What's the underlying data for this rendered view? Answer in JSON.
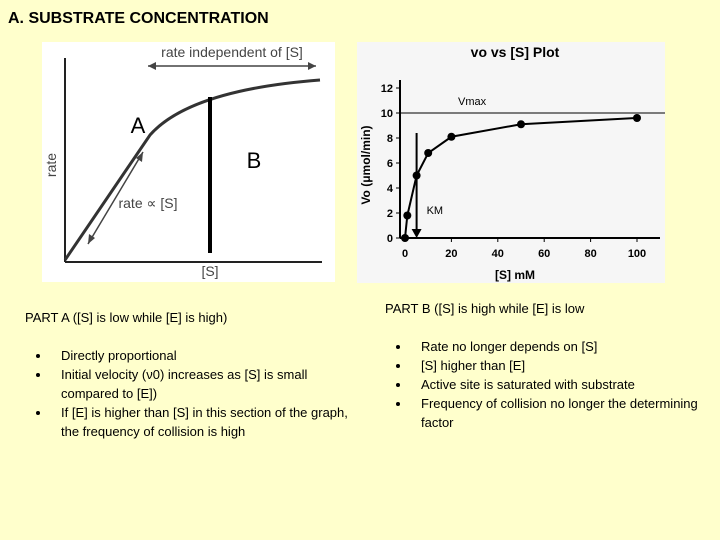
{
  "heading": "A.   SUBSTRATE CONCENTRATION",
  "diagram": {
    "top_label": "rate independent of [S]",
    "region_a": "A",
    "region_b": "B",
    "y_label": "rate",
    "slope_label": "rate ∝ [S]",
    "x_label": "[S]"
  },
  "chart_data": {
    "type": "line",
    "title": "vo vs [S] Plot",
    "x_label": "[S]  mM",
    "y_label": "Vo (μmol/min)",
    "x": [
      0,
      1,
      5,
      10,
      20,
      50,
      100
    ],
    "values": [
      0,
      1.8,
      5,
      6.8,
      8.1,
      9.1,
      9.6
    ],
    "color": "#000000",
    "xlim": [
      0,
      100
    ],
    "ylim": [
      0,
      12
    ],
    "xticks": [
      0,
      20,
      40,
      60,
      80,
      100
    ],
    "yticks": [
      0,
      2,
      4,
      6,
      8,
      10,
      12
    ],
    "vmax": 10,
    "vmax_label": "Vmax",
    "km": 5,
    "km_label": "KM"
  },
  "part_a": {
    "title": "PART A ([S] is low while [E] is high)",
    "bullets": [
      "Directly proportional",
      "Initial velocity (ν0) increases as [S] is small compared to [E])",
      "If [E] is higher than [S] in this section of the graph, the frequency of collision is high"
    ]
  },
  "part_b": {
    "title": "PART B ([S] is high while [E] is low",
    "bullets": [
      "Rate no longer depends on [S]",
      "[S] higher than [E]",
      "Active site is saturated with substrate",
      "Frequency of collision no longer the determining factor"
    ]
  }
}
